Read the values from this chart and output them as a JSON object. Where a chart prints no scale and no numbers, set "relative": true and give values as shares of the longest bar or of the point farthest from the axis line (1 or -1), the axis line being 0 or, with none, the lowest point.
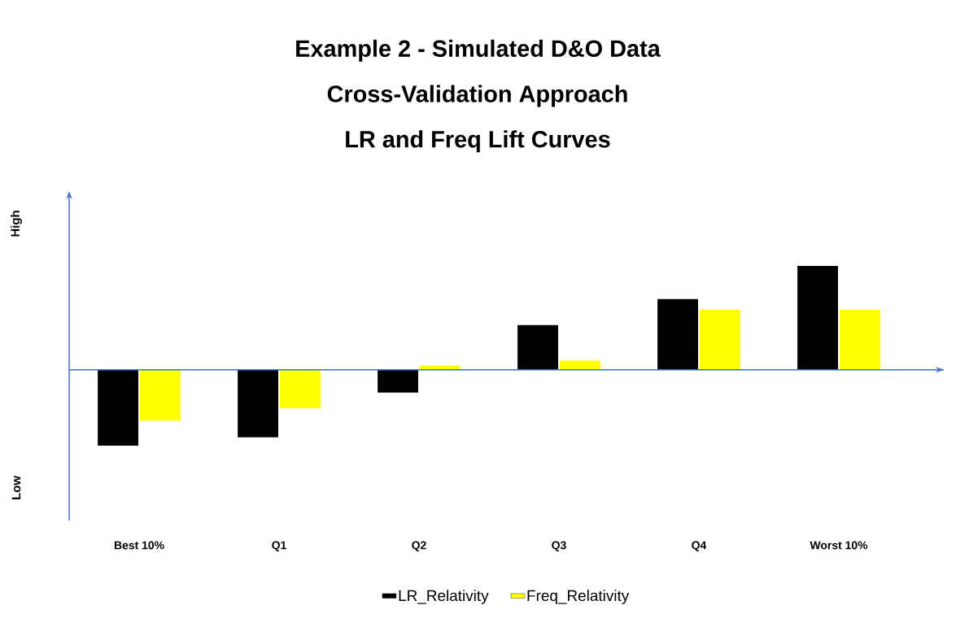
{
  "chart_data": {
    "type": "bar",
    "title": "Example 2 - Simulated D&O Data\nCross-Validation Approach\nLR and Freq Lift Curves",
    "categories": [
      "Best 10%",
      "Q1",
      "Q2",
      "Q3",
      "Q4",
      "Worst 10%"
    ],
    "relative": true,
    "legend": "bottom",
    "annotations": [
      "High",
      "Low"
    ],
    "ref_lines": [
      {
        "axis": "y",
        "value": 0,
        "color": "#4472c4"
      }
    ],
    "series": [
      {
        "name": "LR_Relativity",
        "color": "#000000",
        "values": [
          -0.73,
          -0.65,
          -0.22,
          0.43,
          0.68,
          1
        ]
      },
      {
        "name": "Freq_Relativity",
        "color": "#ffff00",
        "values": [
          -0.49,
          -0.37,
          0.04,
          0.09,
          0.58,
          0.58
        ]
      }
    ]
  }
}
